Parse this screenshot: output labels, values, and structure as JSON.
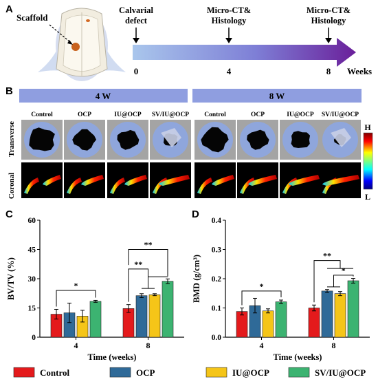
{
  "panels": {
    "a": {
      "letter": "A",
      "scaffold_label": "Scaffold",
      "events": [
        {
          "label_lines": [
            "Calvarial",
            "defect"
          ],
          "week": "0"
        },
        {
          "label_lines": [
            "Micro-CT&",
            "Histology"
          ],
          "week": "4"
        },
        {
          "label_lines": [
            "Micro-CT&",
            "Histology"
          ],
          "week": "8"
        }
      ],
      "axis_unit": "Weeks"
    },
    "b": {
      "letter": "B",
      "week_groups": [
        "4 W",
        "8 W"
      ],
      "columns": [
        "Control",
        "OCP",
        "IU@OCP",
        "SV/IU@OCP",
        "Control",
        "OCP",
        "IU@OCP",
        "SV/IU@OCP"
      ],
      "rows": [
        "Transverse",
        "Coronal"
      ],
      "colorbar": {
        "high": "H",
        "low": "L"
      }
    },
    "c": {
      "letter": "C"
    },
    "d": {
      "letter": "D"
    }
  },
  "chart_data": [
    {
      "type": "bar",
      "panel": "C",
      "categories": [
        "4",
        "8"
      ],
      "xlabel": "Time (weeks)",
      "ylabel": "BV/TV (%)",
      "ylim": [
        0,
        60
      ],
      "yticks": [
        0,
        15,
        30,
        45,
        60
      ],
      "series": [
        {
          "name": "Control",
          "color": "#e41a1c",
          "values": [
            11.8,
            14.7
          ],
          "errors": [
            2.5,
            2.0
          ]
        },
        {
          "name": "OCP",
          "color": "#2f6a98",
          "values": [
            12.5,
            21.3
          ],
          "errors": [
            5.0,
            1.0
          ]
        },
        {
          "name": "IU@OCP",
          "color": "#f5c518",
          "values": [
            10.8,
            21.8
          ],
          "errors": [
            3.0,
            0.5
          ]
        },
        {
          "name": "SV/IU@OCP",
          "color": "#3cb371",
          "values": [
            18.4,
            28.7
          ],
          "errors": [
            0.5,
            1.2
          ]
        }
      ],
      "annotations": [
        {
          "group": "4",
          "from": 0,
          "to": 3,
          "label": "*"
        },
        {
          "group": "8",
          "from": 0,
          "to": [
            1,
            2
          ],
          "label": "**"
        },
        {
          "group": "8",
          "from": 0,
          "to": 3,
          "label": "**"
        },
        {
          "group": "8",
          "from": [
            1,
            2
          ],
          "to": 3,
          "label": ""
        }
      ]
    },
    {
      "type": "bar",
      "panel": "D",
      "categories": [
        "4",
        "8"
      ],
      "xlabel": "Time (weeks)",
      "ylabel": "BMD (g/cm³)",
      "ylim": [
        0,
        0.4
      ],
      "yticks": [
        0.0,
        0.1,
        0.2,
        0.3,
        0.4
      ],
      "series": [
        {
          "name": "Control",
          "color": "#e41a1c",
          "values": [
            0.088,
            0.1
          ],
          "errors": [
            0.012,
            0.01
          ]
        },
        {
          "name": "OCP",
          "color": "#2f6a98",
          "values": [
            0.108,
            0.158
          ],
          "errors": [
            0.025,
            0.005
          ]
        },
        {
          "name": "IU@OCP",
          "color": "#f5c518",
          "values": [
            0.09,
            0.149
          ],
          "errors": [
            0.007,
            0.007
          ]
        },
        {
          "name": "SV/IU@OCP",
          "color": "#3cb371",
          "values": [
            0.121,
            0.193
          ],
          "errors": [
            0.006,
            0.008
          ]
        }
      ],
      "annotations": [
        {
          "group": "4",
          "from": 0,
          "to": 3,
          "label": "*"
        },
        {
          "group": "8",
          "from": 0,
          "to": [
            1,
            2,
            3
          ],
          "label": "**"
        },
        {
          "group": "8",
          "from": [
            1,
            2
          ],
          "to": 3,
          "label": "*"
        }
      ]
    }
  ],
  "legend": [
    "Control",
    "OCP",
    "IU@OCP",
    "SV/IU@OCP"
  ]
}
